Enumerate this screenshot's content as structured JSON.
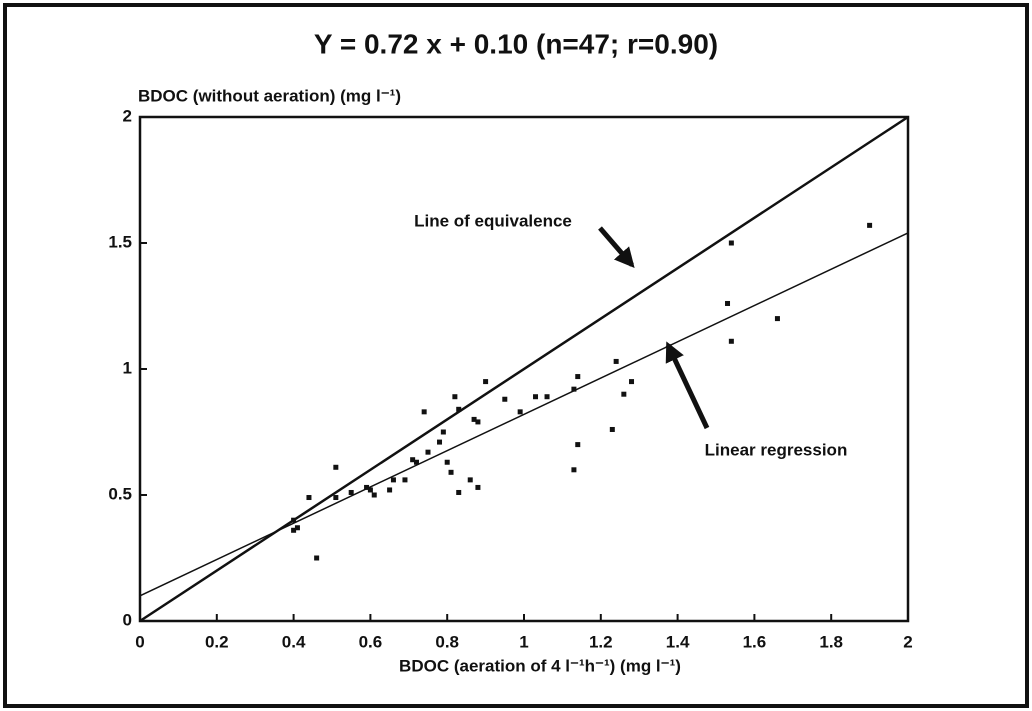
{
  "chart_data": {
    "type": "scatter",
    "title": "Y = 0.72 x + 0.10 (n=47; r=0.90)",
    "y_label": "BDOC (without aeration) (mg l⁻¹)",
    "x_label": "BDOC (aeration of 4 l⁻¹h⁻¹) (mg l⁻¹)",
    "color": "#111111",
    "xlim": [
      0,
      2
    ],
    "ylim": [
      0,
      2
    ],
    "xticks": [
      0,
      0.2,
      0.4,
      0.6,
      0.8,
      1,
      1.2,
      1.4,
      1.6,
      1.8,
      2
    ],
    "yticks": [
      0,
      0.5,
      1,
      1.5,
      2
    ],
    "x": [
      0.4,
      0.4,
      0.41,
      0.44,
      0.46,
      0.51,
      0.51,
      0.55,
      0.59,
      0.6,
      0.61,
      0.65,
      0.66,
      0.69,
      0.71,
      0.72,
      0.74,
      0.75,
      0.78,
      0.79,
      0.8,
      0.81,
      0.82,
      0.83,
      0.83,
      0.86,
      0.87,
      0.88,
      0.88,
      0.9,
      0.95,
      0.99,
      1.03,
      1.06,
      1.13,
      1.13,
      1.14,
      1.14,
      1.23,
      1.24,
      1.26,
      1.28,
      1.53,
      1.54,
      1.54,
      1.66,
      1.9
    ],
    "values": [
      0.4,
      0.36,
      0.37,
      0.49,
      0.25,
      0.61,
      0.49,
      0.51,
      0.53,
      0.52,
      0.5,
      0.52,
      0.56,
      0.56,
      0.64,
      0.63,
      0.83,
      0.67,
      0.71,
      0.75,
      0.63,
      0.59,
      0.89,
      0.84,
      0.51,
      0.56,
      0.8,
      0.79,
      0.53,
      0.95,
      0.88,
      0.83,
      0.89,
      0.89,
      0.92,
      0.6,
      0.97,
      0.7,
      0.76,
      1.03,
      0.9,
      0.95,
      1.26,
      1.5,
      1.11,
      1.2,
      1.57
    ],
    "lines": [
      {
        "name": "Line of equivalence",
        "slope": 1,
        "intercept": 0
      },
      {
        "name": "Linear regression",
        "slope": 0.72,
        "intercept": 0.1
      }
    ]
  }
}
